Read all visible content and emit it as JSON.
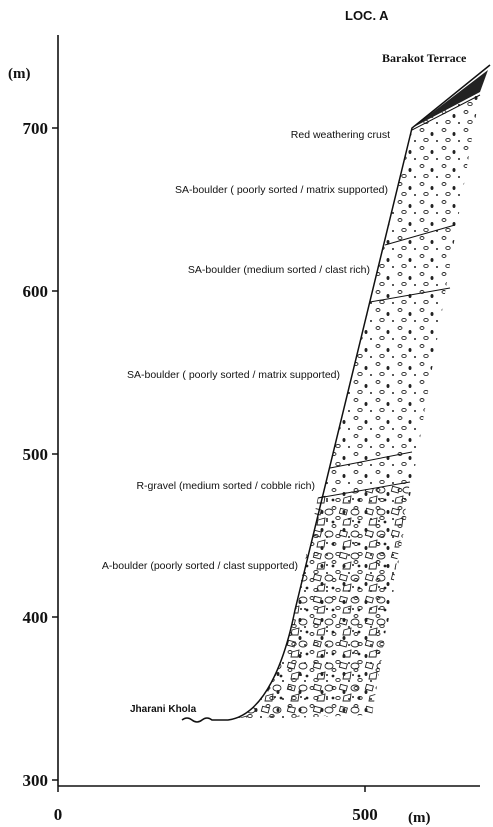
{
  "title": "LOC. A",
  "axes": {
    "y_unit": "(m)",
    "x_unit": "(m)",
    "yticks": [
      300,
      400,
      500,
      600,
      700
    ],
    "xticks": [
      0,
      500
    ]
  },
  "places": {
    "top": "Barakot Terrace",
    "river": "Jharani Khola"
  },
  "layers": [
    "Red weathering crust",
    "SA-boulder ( poorly sorted / matrix supported)",
    "SA-boulder (medium sorted / clast rich)",
    "SA-boulder ( poorly sorted / matrix supported)",
    "R-gravel (medium sorted / cobble rich)",
    "A-boulder (poorly sorted / clast supported)"
  ]
}
